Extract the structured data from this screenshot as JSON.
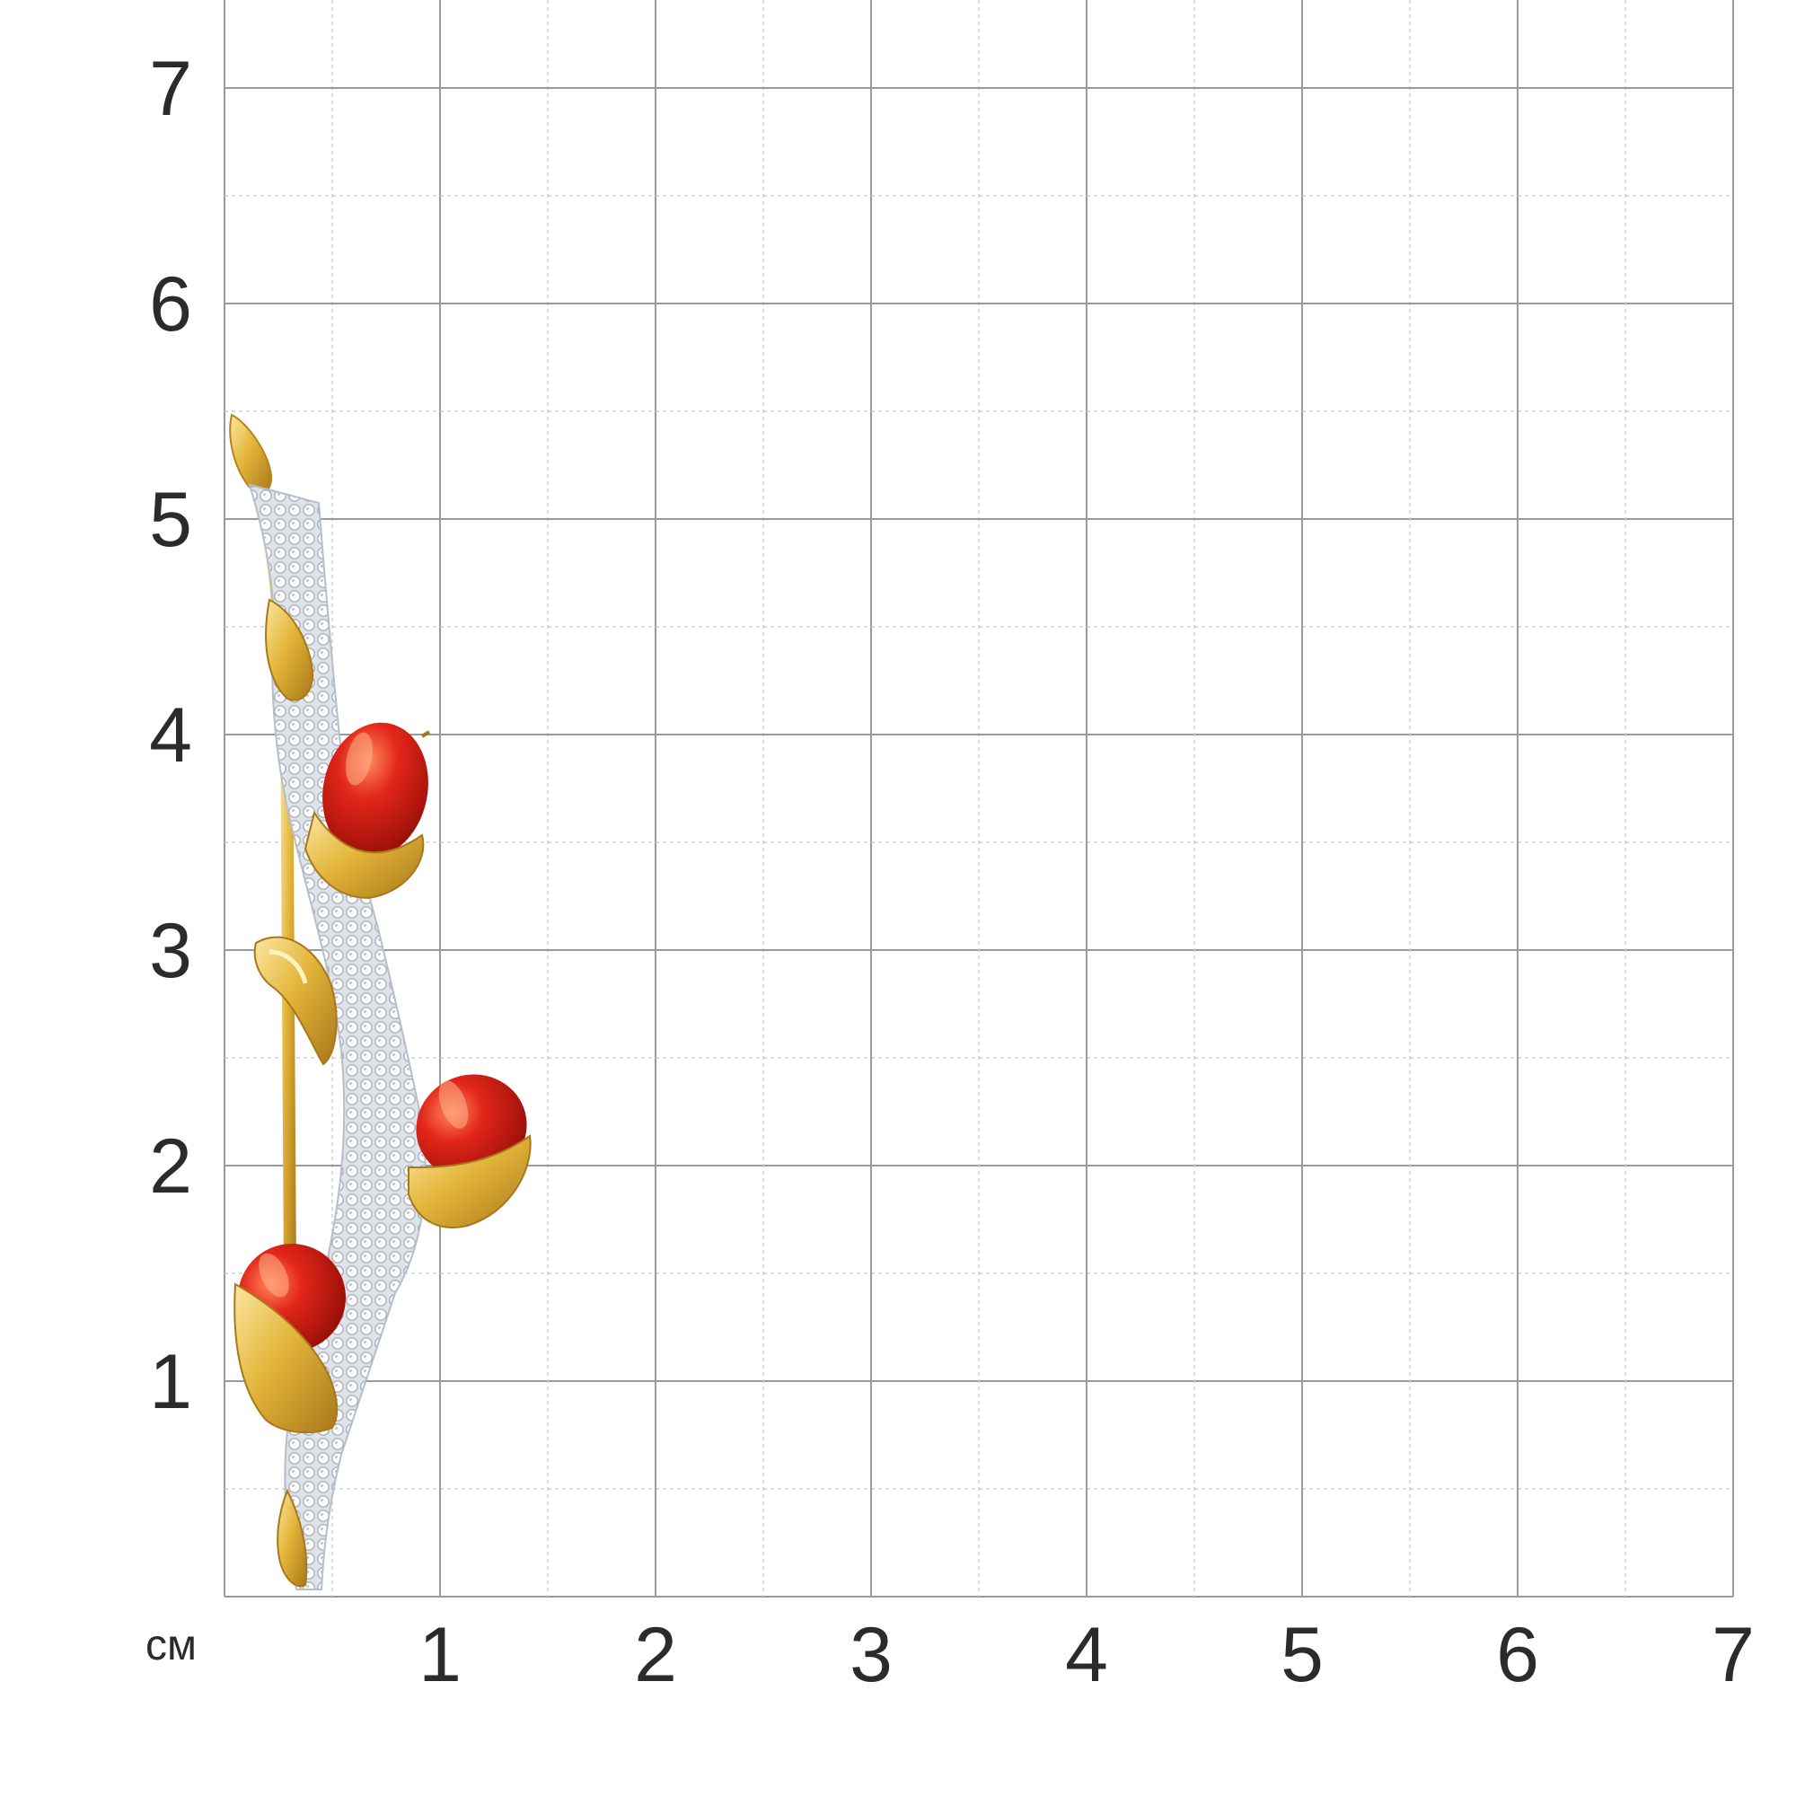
{
  "scale": {
    "unit": "см",
    "x_ticks": [
      "1",
      "2",
      "3",
      "4",
      "5",
      "6",
      "7"
    ],
    "y_ticks": [
      "1",
      "2",
      "3",
      "4",
      "5",
      "6",
      "7"
    ],
    "range_cm": [
      0,
      7
    ],
    "minor_step_cm": 0.5
  },
  "colors": {
    "grid_major": "#9a9a9a",
    "grid_minor": "#cfcfcf",
    "gold": "#e3b53a",
    "gold_light": "#fbe7a0",
    "gold_dark": "#a8781a",
    "stone_red": "#c8140c",
    "stone_red_light": "#ff6a3c",
    "diamond": "#e9ecf1"
  },
  "product": {
    "type": "brooch",
    "motif": "branch with three red cabochon buds",
    "stone_count": 3,
    "height_cm": 5.5,
    "width_cm": 1.45
  }
}
